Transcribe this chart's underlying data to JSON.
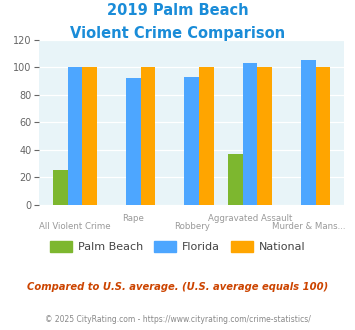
{
  "title_line1": "2019 Palm Beach",
  "title_line2": "Violent Crime Comparison",
  "categories": [
    "All Violent Crime",
    "Rape",
    "Robbery",
    "Aggravated Assault",
    "Murder & Mans..."
  ],
  "palm_beach": [
    25,
    0,
    0,
    37,
    0
  ],
  "florida": [
    100,
    92,
    93,
    103,
    105
  ],
  "national": [
    100,
    100,
    100,
    100,
    100
  ],
  "palm_beach_color": "#7db72f",
  "florida_color": "#4da6ff",
  "national_color": "#ffa500",
  "title_color": "#1a8cd8",
  "bg_color": "#e8f4f8",
  "ylim": [
    0,
    120
  ],
  "yticks": [
    0,
    20,
    40,
    60,
    80,
    100,
    120
  ],
  "footer_text": "Compared to U.S. average. (U.S. average equals 100)",
  "copyright_text": "© 2025 CityRating.com - https://www.cityrating.com/crime-statistics/",
  "legend_labels": [
    "Palm Beach",
    "Florida",
    "National"
  ],
  "label_configs": [
    [
      0,
      "All Violent Crime",
      "bottom"
    ],
    [
      1,
      "Rape",
      "top"
    ],
    [
      2,
      "Robbery",
      "bottom"
    ],
    [
      3,
      "Aggravated Assault",
      "top"
    ],
    [
      4,
      "Murder & Mans...",
      "bottom"
    ]
  ]
}
